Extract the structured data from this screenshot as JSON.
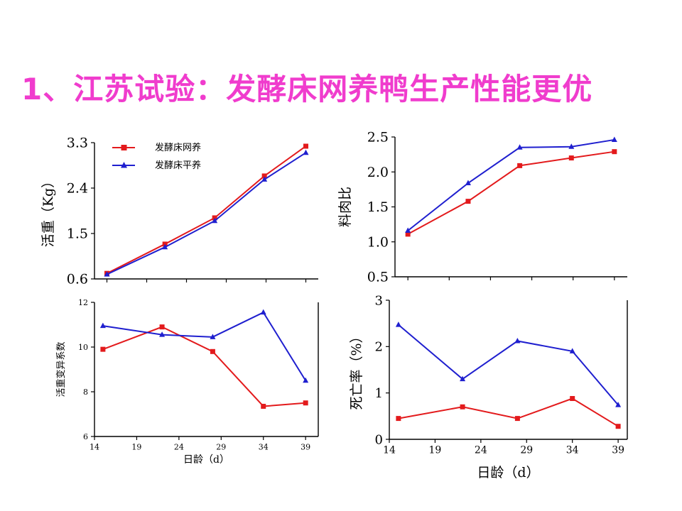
{
  "slide": {
    "title": "1、江苏试验：发酵床网养鸭生产性能更优",
    "title_color": "#f03ccd"
  },
  "colors": {
    "series_a": "#e31a1c",
    "series_b": "#1f1fcf"
  },
  "chart_data": [
    {
      "type": "line",
      "id": "weight",
      "ylabel": "活重（Kg）",
      "xlabel": "",
      "ylim": [
        0.6,
        3.3
      ],
      "yticks": [
        "0.6",
        "1.5",
        "2.4",
        "3.3"
      ],
      "xlim": [
        13.5,
        40.5
      ],
      "xticks": [],
      "legend": {
        "position": "top-left"
      },
      "series": [
        {
          "name": "发酵床网养",
          "marker": "square",
          "x": [
            15,
            22,
            28,
            34,
            39
          ],
          "values": [
            0.71,
            1.29,
            1.81,
            2.64,
            3.23
          ]
        },
        {
          "name": "发酵床平养",
          "marker": "triangle",
          "x": [
            15,
            22,
            28,
            34,
            39
          ],
          "values": [
            0.69,
            1.23,
            1.75,
            2.57,
            3.1
          ]
        }
      ]
    },
    {
      "type": "line",
      "id": "feed-meat-ratio",
      "ylabel": "料肉比",
      "xlabel": "",
      "ylim": [
        0.5,
        2.5
      ],
      "yticks": [
        "0.5",
        "1.0",
        "1.5",
        "2.0",
        "2.5"
      ],
      "xlim": [
        13.5,
        40.5
      ],
      "xticks": [],
      "legend": null,
      "series": [
        {
          "name": "",
          "marker": "square",
          "x": [
            15,
            22,
            28,
            34,
            39
          ],
          "values": [
            1.11,
            1.58,
            2.09,
            2.2,
            2.29
          ]
        },
        {
          "name": "",
          "marker": "triangle",
          "x": [
            15,
            22,
            28,
            34,
            39
          ],
          "values": [
            1.16,
            1.84,
            2.35,
            2.36,
            2.46
          ]
        }
      ]
    },
    {
      "type": "line",
      "id": "weight-cv",
      "ylabel": "活重变异系数",
      "xlabel": "日龄（d）",
      "ylim": [
        6,
        12
      ],
      "yticks": [
        "6",
        "8",
        "10",
        "12"
      ],
      "xlim": [
        14,
        40.5
      ],
      "xticks": [
        "14",
        "19",
        "24",
        "29",
        "34",
        "39"
      ],
      "legend": null,
      "series": [
        {
          "name": "",
          "marker": "square",
          "x": [
            15,
            22,
            28,
            34,
            39
          ],
          "values": [
            9.9,
            10.9,
            9.8,
            7.35,
            7.5
          ]
        },
        {
          "name": "",
          "marker": "triangle",
          "x": [
            15,
            22,
            28,
            34,
            39
          ],
          "values": [
            10.95,
            10.55,
            10.45,
            11.55,
            8.5
          ]
        }
      ]
    },
    {
      "type": "line",
      "id": "mortality",
      "ylabel": "死亡率（%）",
      "xlabel": "日龄（d）",
      "ylim": [
        0,
        3
      ],
      "yticks": [
        "0",
        "1",
        "2",
        "3"
      ],
      "xlim": [
        14,
        40
      ],
      "xticks": [
        "14",
        "19",
        "24",
        "29",
        "34",
        "39"
      ],
      "legend": null,
      "series": [
        {
          "name": "",
          "marker": "square",
          "x": [
            15,
            22,
            28,
            34,
            39
          ],
          "values": [
            0.45,
            0.7,
            0.45,
            0.88,
            0.28
          ]
        },
        {
          "name": "",
          "marker": "triangle",
          "x": [
            15,
            22,
            28,
            34,
            39
          ],
          "values": [
            2.47,
            1.3,
            2.12,
            1.9,
            0.74
          ]
        }
      ]
    }
  ]
}
